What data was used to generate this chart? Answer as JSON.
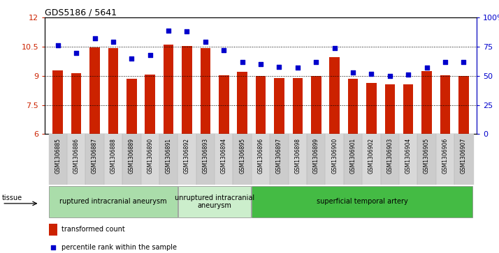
{
  "title": "GDS5186 / 5641",
  "samples": [
    "GSM1306885",
    "GSM1306886",
    "GSM1306887",
    "GSM1306888",
    "GSM1306889",
    "GSM1306890",
    "GSM1306891",
    "GSM1306892",
    "GSM1306893",
    "GSM1306894",
    "GSM1306895",
    "GSM1306896",
    "GSM1306897",
    "GSM1306898",
    "GSM1306899",
    "GSM1306900",
    "GSM1306901",
    "GSM1306902",
    "GSM1306903",
    "GSM1306904",
    "GSM1306905",
    "GSM1306906",
    "GSM1306907"
  ],
  "transformed_count": [
    9.3,
    9.15,
    10.48,
    10.42,
    8.85,
    9.08,
    10.62,
    10.55,
    10.42,
    9.05,
    9.2,
    9.0,
    8.9,
    8.9,
    9.0,
    9.95,
    8.85,
    8.62,
    8.55,
    8.55,
    9.25,
    9.05,
    9.0
  ],
  "percentile_rank": [
    76,
    70,
    82,
    79,
    65,
    68,
    89,
    88,
    79,
    72,
    62,
    60,
    58,
    57,
    62,
    74,
    53,
    52,
    50,
    51,
    57,
    62,
    62
  ],
  "bar_color": "#cc2200",
  "dot_color": "#0000cc",
  "ylim_left": [
    6,
    12
  ],
  "ylim_right": [
    0,
    100
  ],
  "yticks_left": [
    6,
    7.5,
    9,
    10.5,
    12
  ],
  "yticks_right": [
    0,
    25,
    50,
    75,
    100
  ],
  "grid_lines": [
    7.5,
    9.0,
    10.5
  ],
  "groups": [
    {
      "label": "ruptured intracranial aneurysm",
      "start": 0,
      "end": 7,
      "color": "#aaddaa"
    },
    {
      "label": "unruptured intracranial\naneurysm",
      "start": 7,
      "end": 11,
      "color": "#cceecc"
    },
    {
      "label": "superficial temporal artery",
      "start": 11,
      "end": 23,
      "color": "#44bb44"
    }
  ]
}
